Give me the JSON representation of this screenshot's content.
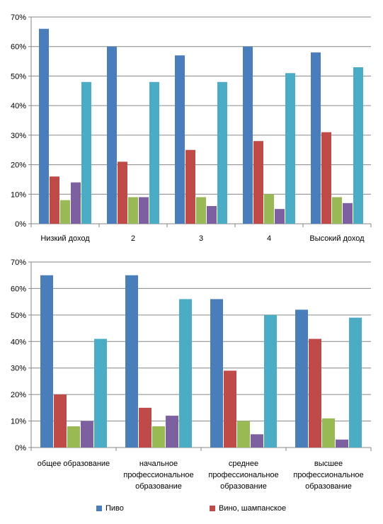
{
  "chart_data": [
    {
      "type": "bar",
      "categories": [
        "Низкий доход",
        "2",
        "3",
        "4",
        "Высокий доход"
      ],
      "series": [
        {
          "values": [
            66,
            60,
            57,
            60,
            58
          ],
          "color": "#4a7ebb"
        },
        {
          "values": [
            16,
            21,
            25,
            28,
            31
          ],
          "color": "#be4b48"
        },
        {
          "values": [
            8,
            9,
            9,
            10,
            9
          ],
          "color": "#98b954"
        },
        {
          "values": [
            14,
            9,
            6,
            5,
            7
          ],
          "color": "#7d60a0"
        },
        {
          "values": [
            48,
            48,
            48,
            51,
            53
          ],
          "color": "#4bacc6"
        }
      ],
      "ylim": [
        0,
        70
      ],
      "yticks": [
        "0%",
        "10%",
        "20%",
        "30%",
        "40%",
        "50%",
        "60%",
        "70%"
      ],
      "grid": true
    },
    {
      "type": "bar",
      "categories": [
        [
          "общее образование"
        ],
        [
          "начальное",
          "профессиональное",
          "образование"
        ],
        [
          "среднее",
          "профессиональное",
          "образование"
        ],
        [
          "высшее",
          "профессиональное",
          "образование"
        ]
      ],
      "series": [
        {
          "values": [
            65,
            65,
            56,
            52
          ],
          "color": "#4a7ebb"
        },
        {
          "values": [
            20,
            15,
            29,
            41
          ],
          "color": "#be4b48"
        },
        {
          "values": [
            8,
            8,
            10,
            11
          ],
          "color": "#98b954"
        },
        {
          "values": [
            10,
            12,
            5,
            3
          ],
          "color": "#7d60a0"
        },
        {
          "values": [
            41,
            56,
            50,
            49
          ],
          "color": "#4bacc6"
        }
      ],
      "ylim": [
        0,
        70
      ],
      "yticks": [
        "0%",
        "10%",
        "20%",
        "30%",
        "40%",
        "50%",
        "60%",
        "70%"
      ],
      "grid": true
    }
  ],
  "legend": [
    {
      "label": "Пиво",
      "color": "#4a7ebb"
    },
    {
      "label": "Вино, шампанское",
      "color": "#be4b48"
    }
  ]
}
